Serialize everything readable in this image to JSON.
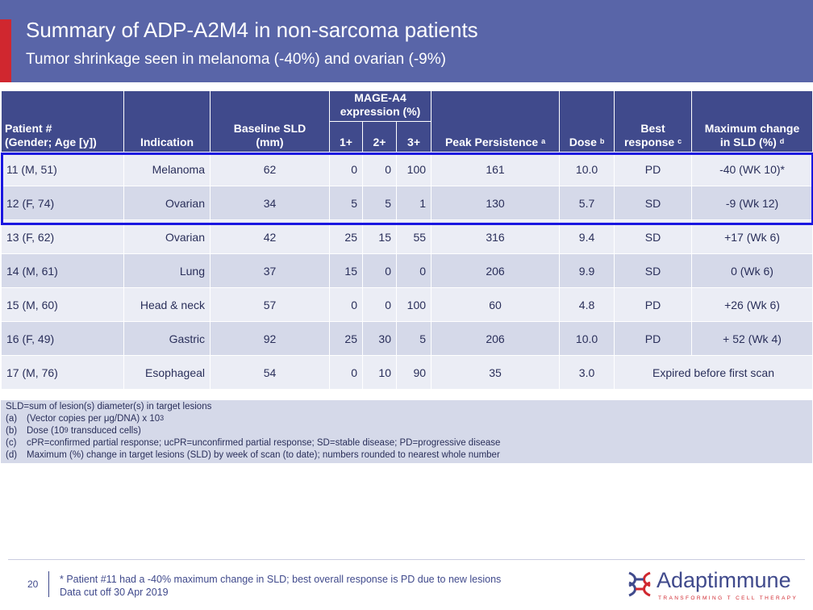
{
  "title": "Summary of ADP-A2M4 in non-sarcoma patients",
  "subtitle": "Tumor shrinkage seen in melanoma (-40%) and ovarian (-9%)",
  "table": {
    "headers": {
      "patient": [
        "Patient #",
        "(Gender; Age [y])"
      ],
      "indication": "Indication",
      "baseline": [
        "Baseline SLD",
        "(mm)"
      ],
      "mage": [
        "MAGE-A4",
        "expression (%)"
      ],
      "mage_sub": [
        "1+",
        "2+",
        "3+"
      ],
      "peak": "Peak Persistence",
      "peak_sup": "a",
      "dose": "Dose",
      "dose_sup": "b",
      "best": [
        "Best",
        "response"
      ],
      "best_sup": "c",
      "maxchange": [
        "Maximum change",
        "in SLD (%)"
      ],
      "maxchange_sup": "d"
    },
    "rows": [
      {
        "patient": "11 (M, 51)",
        "indication": "Melanoma",
        "baseline": "62",
        "m1": "0",
        "m2": "0",
        "m3": "100",
        "peak": "161",
        "dose": "10.0",
        "best": "PD",
        "maxchange": "-40 (WK 10)*"
      },
      {
        "patient": "12 (F, 74)",
        "indication": "Ovarian",
        "baseline": "34",
        "m1": "5",
        "m2": "5",
        "m3": "1",
        "peak": "130",
        "dose": "5.7",
        "best": "SD",
        "maxchange": "-9 (Wk 12)"
      },
      {
        "patient": "13 (F, 62)",
        "indication": "Ovarian",
        "baseline": "42",
        "m1": "25",
        "m2": "15",
        "m3": "55",
        "peak": "316",
        "dose": "9.4",
        "best": "SD",
        "maxchange": "+17 (Wk 6)"
      },
      {
        "patient": "14 (M, 61)",
        "indication": "Lung",
        "baseline": "37",
        "m1": "15",
        "m2": "0",
        "m3": "0",
        "peak": "206",
        "dose": "9.9",
        "best": "SD",
        "maxchange": "0 (Wk 6)"
      },
      {
        "patient": "15 (M, 60)",
        "indication": "Head & neck",
        "baseline": "57",
        "m1": "0",
        "m2": "0",
        "m3": "100",
        "peak": "60",
        "dose": "4.8",
        "best": "PD",
        "maxchange": "+26 (Wk 6)"
      },
      {
        "patient": "16 (F, 49)",
        "indication": "Gastric",
        "baseline": "92",
        "m1": "25",
        "m2": "30",
        "m3": "5",
        "peak": "206",
        "dose": "10.0",
        "best": "PD",
        "maxchange": "+ 52 (Wk 4)"
      },
      {
        "patient": "17 (M, 76)",
        "indication": "Esophageal",
        "baseline": "54",
        "m1": "0",
        "m2": "10",
        "m3": "90",
        "peak": "35",
        "dose": "3.0",
        "merged_note": "Expired before first scan"
      }
    ]
  },
  "footnotes": {
    "sld": "SLD=sum of lesion(s) diameter(s) in target lesions",
    "a": {
      "letter": "(a)",
      "text": "(Vector copies per μg/DNA) x 10",
      "sup": "3"
    },
    "b": {
      "letter": "(b)",
      "text_before": "Dose (10",
      "sup": "9",
      "text_after": " transduced cells)"
    },
    "c": {
      "letter": "(c)",
      "text": "cPR=confirmed partial response; ucPR=unconfirmed partial response; SD=stable disease; PD=progressive disease"
    },
    "d": {
      "letter": "(d)",
      "text": "Maximum (%) change in target lesions (SLD) by week of scan (to date); numbers rounded to nearest whole number"
    }
  },
  "footer": {
    "page_number": "20",
    "note_line1": "* Patient #11 had a -40% maximum change in SLD; best overall response is PD due to new lesions",
    "note_line2": "Data cut off 30 Apr 2019",
    "logo_text": "Adaptimmune",
    "logo_tagline": "TRANSFORMING T CELL THERAPY"
  },
  "colors": {
    "header_bg": "#5965a8",
    "accent_red": "#d0272f",
    "table_header": "#404a8c",
    "row_light": "#ebedf5",
    "row_dark": "#d5d9e9",
    "highlight_box": "#1a16e0"
  }
}
